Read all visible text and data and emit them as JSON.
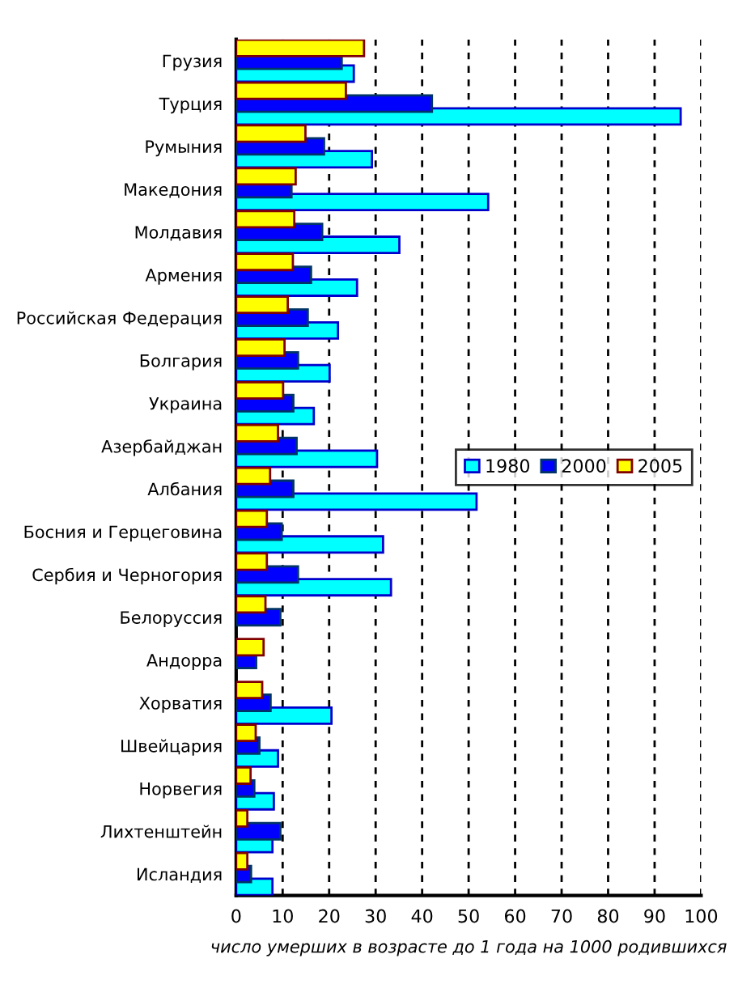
{
  "chart_data": {
    "type": "bar",
    "orientation": "horizontal",
    "xlabel": "число умерших в возрасте до 1 года на 1000 родившихся",
    "categories": [
      "Грузия",
      "Турция",
      "Румыния",
      "Македония",
      "Молдавия",
      "Армения",
      "Российская Федерация",
      "Болгария",
      "Украина",
      "Азербайджан",
      "Албания",
      "Босния и Герцеговина",
      "Сербия и Черногория",
      "Белоруссия",
      "Андорра",
      "Хорватия",
      "Швейцария",
      "Норвегия",
      "Лихтенштейн",
      "Исландия"
    ],
    "series": [
      {
        "name": "1980",
        "color": "#00ffff",
        "values": [
          25.3,
          95.6,
          29.2,
          54.2,
          35.1,
          26.0,
          21.9,
          20.1,
          16.7,
          30.3,
          51.7,
          31.6,
          33.3,
          null,
          null,
          20.5,
          9.0,
          8.1,
          7.8,
          7.8
        ]
      },
      {
        "name": "2000",
        "color": "#0000ff",
        "values": [
          22.7,
          42.1,
          18.9,
          11.9,
          18.5,
          16.1,
          15.4,
          13.3,
          12.3,
          13.0,
          12.3,
          9.8,
          13.3,
          9.5,
          4.3,
          7.4,
          5.0,
          3.9,
          9.5,
          3.2
        ]
      },
      {
        "name": "2005",
        "color": "#ffff00",
        "values": [
          27.5,
          23.6,
          14.9,
          12.8,
          12.5,
          12.2,
          11.1,
          10.4,
          10.1,
          9.0,
          7.3,
          6.6,
          6.6,
          6.3,
          5.9,
          5.6,
          4.2,
          3.1,
          2.4,
          2.4
        ]
      }
    ],
    "xlim": [
      0,
      100
    ],
    "xticks": [
      0,
      10,
      20,
      30,
      40,
      50,
      60,
      70,
      80,
      90,
      100
    ],
    "grid": "x",
    "legend": "center right"
  }
}
